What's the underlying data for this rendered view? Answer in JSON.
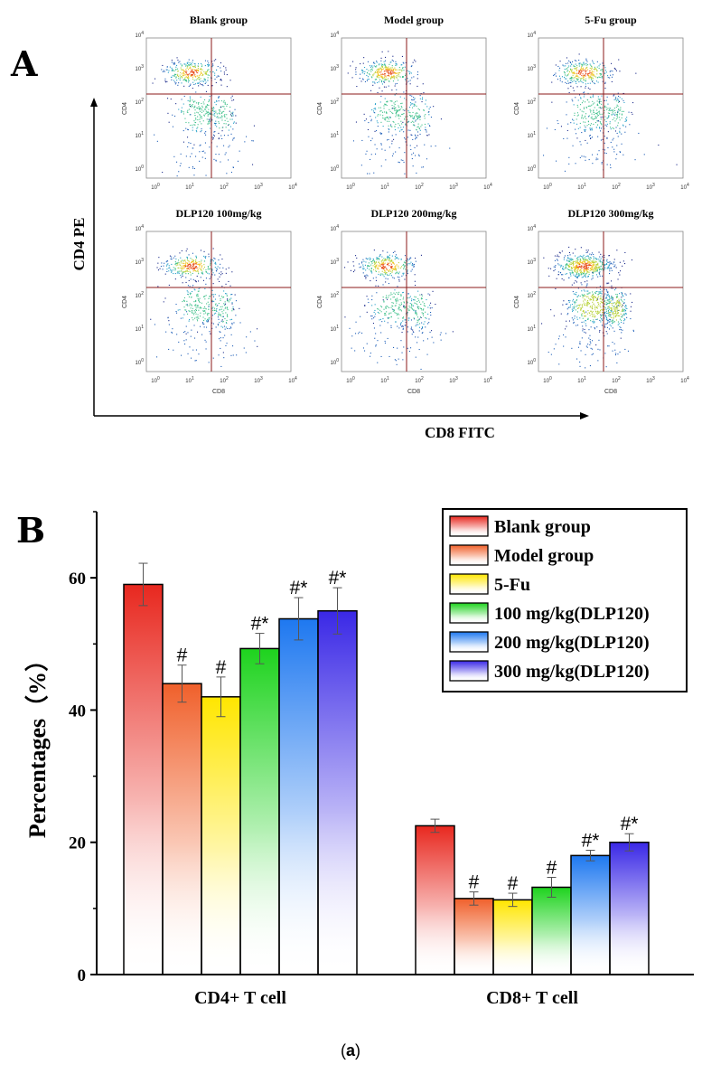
{
  "panel_a": {
    "letter": "A",
    "y_axis_label": "CD4 PE",
    "x_axis_label": "CD8 FITC",
    "plots": [
      {
        "title": "Blank group",
        "x_label": "",
        "y_label": "CD4"
      },
      {
        "title": "Model group",
        "x_label": "",
        "y_label": "CD4"
      },
      {
        "title": "5-Fu group",
        "x_label": "",
        "y_label": "CD4"
      },
      {
        "title": "DLP120 100mg/kg",
        "x_label": "CD8",
        "y_label": "CD4"
      },
      {
        "title": "DLP120 200mg/kg",
        "x_label": "CD8",
        "y_label": "CD4"
      },
      {
        "title": "DLP120 300mg/kg",
        "x_label": "CD8",
        "y_label": "CD4"
      }
    ],
    "tick_exponents": [
      "0",
      "1",
      "2",
      "3",
      "4"
    ],
    "tick_base": "10"
  },
  "panel_b": {
    "letter": "B",
    "chart_data": {
      "type": "bar",
      "ylabel": "Percentages（%）",
      "xlabel": "",
      "ylim": [
        0,
        70
      ],
      "yticks": [
        "0",
        "20",
        "40",
        "60"
      ],
      "categories": [
        "CD4+ T cell",
        "CD8+ T cell"
      ],
      "series": [
        {
          "name": "Blank group",
          "color": "#e8281f",
          "values": [
            59.0,
            22.5
          ],
          "errors": [
            3.2,
            1.0
          ],
          "marks": [
            "",
            ""
          ]
        },
        {
          "name": "Model group",
          "color": "#f0602b",
          "values": [
            44.0,
            11.5
          ],
          "errors": [
            2.8,
            1.0
          ],
          "marks": [
            "#",
            "#"
          ]
        },
        {
          "name": "5-Fu",
          "color": "#ffe600",
          "values": [
            42.0,
            11.3
          ],
          "errors": [
            3.0,
            1.0
          ],
          "marks": [
            "#",
            "#"
          ]
        },
        {
          "name": "100 mg/kg(DLP120)",
          "color": "#1ed31e",
          "values": [
            49.3,
            13.2
          ],
          "errors": [
            2.3,
            1.5
          ],
          "marks": [
            "#*",
            "#"
          ]
        },
        {
          "name": "200 mg/kg(DLP120)",
          "color": "#1e78f0",
          "values": [
            53.8,
            18.0
          ],
          "errors": [
            3.2,
            0.8
          ],
          "marks": [
            "#*",
            "#*"
          ]
        },
        {
          "name": "300 mg/kg(DLP120)",
          "color": "#3a28e6",
          "values": [
            55.0,
            20.0
          ],
          "errors": [
            3.5,
            1.3
          ],
          "marks": [
            "#*",
            "#*"
          ]
        }
      ],
      "legend": "top-right"
    }
  },
  "caption": {
    "open": "(",
    "letter": "a",
    "close": ")"
  }
}
